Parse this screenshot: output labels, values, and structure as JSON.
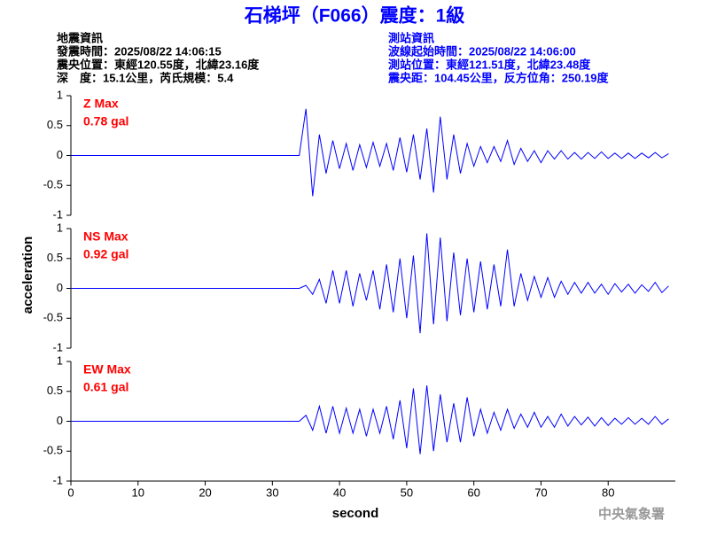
{
  "title": "石梯坪（F066）震度：1級",
  "event_info": [
    "地震資訊",
    "發震時間：2025/08/22 14:06:15",
    "震央位置：東經120.55度，北緯23.16度",
    "深　度：15.1公里，芮氏規模：5.4"
  ],
  "station_info": [
    "測站資訊",
    "波線起始時間：2025/08/22 14:06:00",
    "測站位置：東經121.51度，北緯23.48度",
    "震央距：104.45公里，反方位角：250.19度"
  ],
  "footer": "中央氣象署",
  "chart_data": [
    {
      "type": "line",
      "color": "#0000ff",
      "annotations": [
        "Z Max",
        "0.78 gal"
      ],
      "xlim": [
        0,
        90
      ],
      "ylim": [
        -1,
        1
      ],
      "yticks": [
        1,
        0.5,
        0,
        -0.5,
        -1
      ],
      "x": [
        0,
        34,
        35,
        36,
        37,
        38,
        39,
        40,
        41,
        42,
        43,
        44,
        45,
        46,
        47,
        48,
        49,
        50,
        51,
        52,
        53,
        54,
        55,
        56,
        57,
        58,
        59,
        60,
        61,
        62,
        63,
        64,
        65,
        66,
        67,
        68,
        69,
        70,
        71,
        72,
        73,
        74,
        75,
        76,
        77,
        78,
        79,
        80,
        81,
        82,
        83,
        84,
        85,
        86,
        87,
        88,
        89
      ],
      "values": [
        0,
        0,
        0.78,
        -0.68,
        0.35,
        -0.3,
        0.25,
        -0.22,
        0.2,
        -0.25,
        0.18,
        -0.2,
        0.22,
        -0.18,
        0.2,
        -0.25,
        0.3,
        -0.28,
        0.35,
        -0.4,
        0.45,
        -0.62,
        0.65,
        -0.4,
        0.35,
        -0.3,
        0.2,
        -0.18,
        0.15,
        -0.12,
        0.15,
        -0.1,
        0.25,
        -0.15,
        0.12,
        -0.1,
        0.08,
        -0.12,
        0.08,
        -0.06,
        0.08,
        -0.06,
        0.05,
        -0.06,
        0.05,
        -0.05,
        0.06,
        -0.05,
        0.04,
        -0.05,
        0.04,
        -0.05,
        0.04,
        -0.04,
        0.05,
        -0.04,
        0.03
      ]
    },
    {
      "type": "line",
      "color": "#0000ff",
      "annotations": [
        "NS Max",
        "0.92 gal"
      ],
      "ylabel": "acceleration",
      "xlim": [
        0,
        90
      ],
      "ylim": [
        -1,
        1
      ],
      "yticks": [
        1,
        0.5,
        0,
        -0.5,
        -1
      ],
      "x": [
        0,
        34,
        35,
        36,
        37,
        38,
        39,
        40,
        41,
        42,
        43,
        44,
        45,
        46,
        47,
        48,
        49,
        50,
        51,
        52,
        53,
        54,
        55,
        56,
        57,
        58,
        59,
        60,
        61,
        62,
        63,
        64,
        65,
        66,
        67,
        68,
        69,
        70,
        71,
        72,
        73,
        74,
        75,
        76,
        77,
        78,
        79,
        80,
        81,
        82,
        83,
        84,
        85,
        86,
        87,
        88,
        89
      ],
      "values": [
        0,
        0,
        0.05,
        -0.1,
        0.15,
        -0.25,
        0.3,
        -0.25,
        0.3,
        -0.3,
        0.25,
        -0.2,
        0.3,
        -0.35,
        0.4,
        -0.4,
        0.5,
        -0.5,
        0.55,
        -0.75,
        0.92,
        -0.6,
        0.85,
        -0.55,
        0.6,
        -0.45,
        0.5,
        -0.4,
        0.45,
        -0.35,
        0.4,
        -0.3,
        0.65,
        -0.3,
        0.25,
        -0.2,
        0.2,
        -0.15,
        0.18,
        -0.15,
        0.12,
        -0.1,
        0.1,
        -0.08,
        0.1,
        -0.08,
        0.07,
        -0.1,
        0.08,
        -0.06,
        0.07,
        -0.08,
        0.06,
        -0.05,
        0.1,
        -0.07,
        0.04
      ]
    },
    {
      "type": "line",
      "color": "#0000ff",
      "annotations": [
        "EW Max",
        "0.61 gal"
      ],
      "xlabel": "second",
      "xlim": [
        0,
        90
      ],
      "ylim": [
        -1,
        1
      ],
      "yticks": [
        1,
        0.5,
        0,
        -0.5,
        -1
      ],
      "xticks": [
        0,
        10,
        20,
        30,
        40,
        50,
        60,
        70,
        80
      ],
      "x": [
        0,
        34,
        35,
        36,
        37,
        38,
        39,
        40,
        41,
        42,
        43,
        44,
        45,
        46,
        47,
        48,
        49,
        50,
        51,
        52,
        53,
        54,
        55,
        56,
        57,
        58,
        59,
        60,
        61,
        62,
        63,
        64,
        65,
        66,
        67,
        68,
        69,
        70,
        71,
        72,
        73,
        74,
        75,
        76,
        77,
        78,
        79,
        80,
        81,
        82,
        83,
        84,
        85,
        86,
        87,
        88,
        89
      ],
      "values": [
        0,
        0,
        0.1,
        -0.15,
        0.25,
        -0.2,
        0.25,
        -0.2,
        0.22,
        -0.2,
        0.2,
        -0.25,
        0.2,
        -0.2,
        0.25,
        -0.3,
        0.35,
        -0.45,
        0.55,
        -0.55,
        0.6,
        -0.5,
        0.45,
        -0.35,
        0.3,
        -0.35,
        0.4,
        -0.25,
        0.2,
        -0.2,
        0.15,
        -0.15,
        0.2,
        -0.12,
        0.12,
        -0.1,
        0.15,
        -0.1,
        0.08,
        -0.1,
        0.12,
        -0.08,
        0.08,
        -0.06,
        0.07,
        -0.08,
        0.06,
        -0.07,
        0.05,
        -0.05,
        0.06,
        -0.05,
        0.05,
        -0.05,
        0.08,
        -0.05,
        0.04
      ]
    }
  ]
}
